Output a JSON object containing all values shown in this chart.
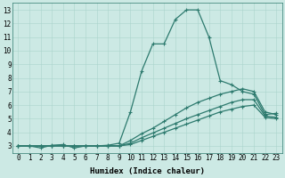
{
  "bg_color": "#cce9e4",
  "grid_color": "#aad4cc",
  "line_color": "#2d7a6e",
  "line_width": 0.9,
  "marker": "+",
  "markersize": 3.5,
  "markeredgewidth": 0.8,
  "xlabel": "Humidex (Indice chaleur)",
  "xlabel_fontsize": 6.5,
  "tick_fontsize": 5.5,
  "xlim": [
    -0.5,
    23.5
  ],
  "ylim": [
    2.5,
    13.5
  ],
  "yticks": [
    3,
    4,
    5,
    6,
    7,
    8,
    9,
    10,
    11,
    12,
    13
  ],
  "xticks": [
    0,
    1,
    2,
    3,
    4,
    5,
    6,
    7,
    8,
    9,
    10,
    11,
    12,
    13,
    14,
    15,
    16,
    17,
    18,
    19,
    20,
    21,
    22,
    23
  ],
  "series": [
    [
      3.0,
      3.0,
      2.85,
      3.05,
      3.1,
      2.85,
      3.0,
      3.0,
      3.05,
      3.2,
      5.5,
      8.5,
      10.5,
      10.5,
      12.3,
      13.0,
      13.0,
      11.0,
      7.8,
      7.5,
      7.0,
      6.8,
      5.3,
      5.4
    ],
    [
      3.0,
      3.0,
      3.0,
      3.0,
      3.0,
      3.0,
      3.0,
      3.0,
      3.0,
      3.0,
      3.4,
      3.9,
      4.3,
      4.8,
      5.3,
      5.8,
      6.2,
      6.5,
      6.8,
      7.0,
      7.2,
      7.0,
      5.5,
      5.3
    ],
    [
      3.0,
      3.0,
      3.0,
      3.0,
      3.0,
      3.0,
      3.0,
      3.0,
      3.0,
      3.0,
      3.2,
      3.6,
      3.95,
      4.3,
      4.65,
      5.0,
      5.3,
      5.6,
      5.9,
      6.2,
      6.4,
      6.4,
      5.2,
      5.1
    ],
    [
      3.0,
      3.0,
      3.0,
      3.0,
      3.0,
      3.0,
      3.0,
      3.0,
      3.0,
      3.0,
      3.1,
      3.4,
      3.7,
      4.0,
      4.3,
      4.6,
      4.9,
      5.2,
      5.5,
      5.7,
      5.9,
      6.0,
      5.1,
      5.0
    ]
  ]
}
